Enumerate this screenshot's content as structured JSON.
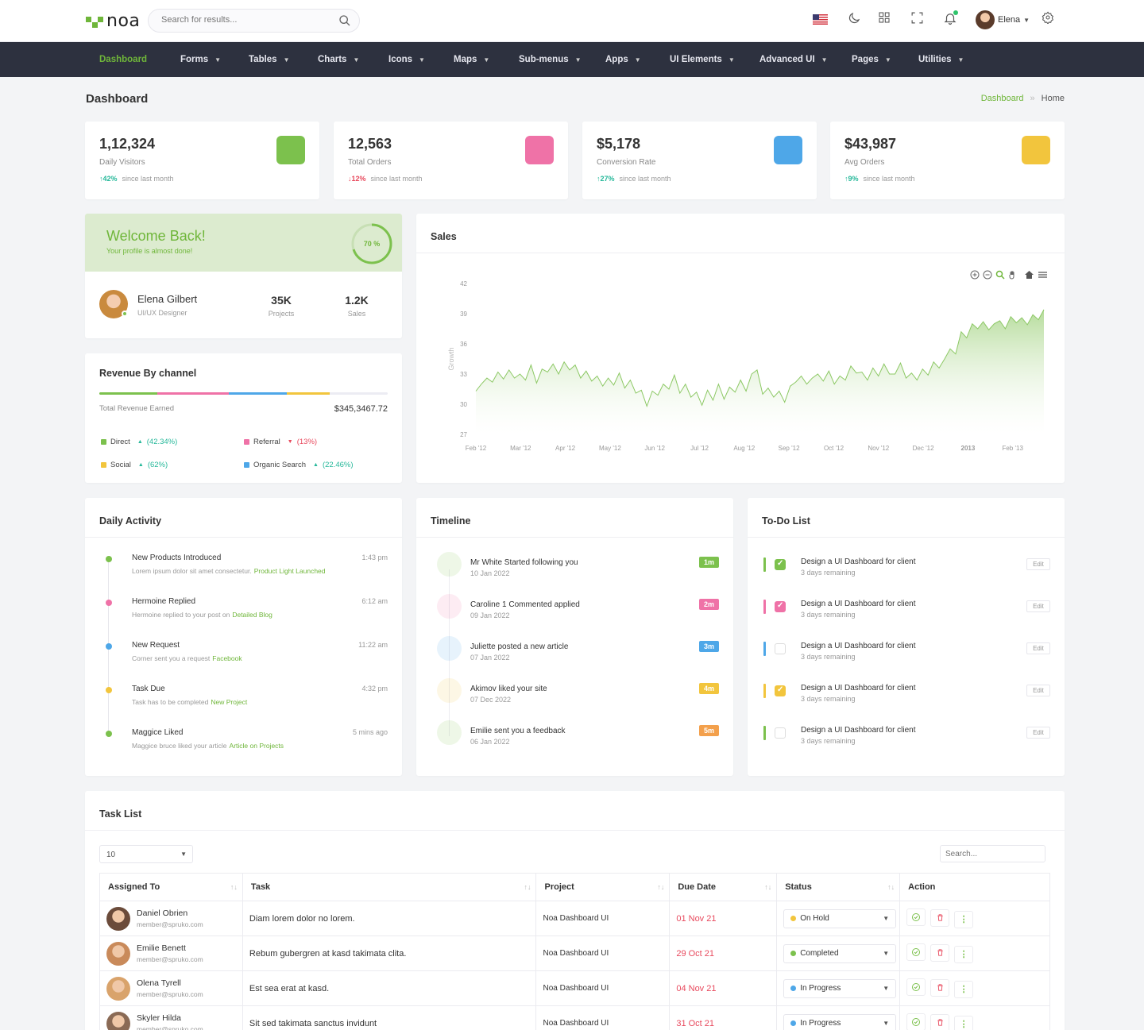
{
  "brand": {
    "name": "noa"
  },
  "header": {
    "search_placeholder": "Search for results...",
    "user_name": "Elena"
  },
  "nav": [
    {
      "label": "Dashboard",
      "icon": "home-icon",
      "active": true
    },
    {
      "label": "Forms",
      "icon": "edit-icon"
    },
    {
      "label": "Tables",
      "icon": "table-icon"
    },
    {
      "label": "Charts",
      "icon": "bar-chart-icon"
    },
    {
      "label": "Icons",
      "icon": "aperture-icon"
    },
    {
      "label": "Maps",
      "icon": "map-pin-icon"
    },
    {
      "label": "Sub-menus",
      "icon": "share-icon"
    },
    {
      "label": "Apps",
      "icon": "grid-icon"
    },
    {
      "label": "UI Elements",
      "icon": "layers-icon"
    },
    {
      "label": "Advanced UI",
      "icon": "settings-icon"
    },
    {
      "label": "Pages",
      "icon": "file-icon"
    },
    {
      "label": "Utilities",
      "icon": "stack-icon"
    }
  ],
  "page": {
    "title": "Dashboard",
    "crumb1": "Dashboard",
    "crumb2": "Home"
  },
  "stats": [
    {
      "value": "1,12,324",
      "label": "Daily Visitors",
      "change": "42%",
      "dir": "up",
      "note": "since last month",
      "color": "#7cc14d",
      "icon": "eye-icon"
    },
    {
      "value": "12,563",
      "label": "Total Orders",
      "change": "12%",
      "dir": "down",
      "note": "since last month",
      "color": "#ef72a7",
      "icon": "bag-icon"
    },
    {
      "value": "$5,178",
      "label": "Conversion Rate",
      "change": "27%",
      "dir": "up",
      "note": "since last month",
      "color": "#4ea7e8",
      "icon": "chart-icon"
    },
    {
      "value": "$43,987",
      "label": "Avg Orders",
      "change": "9%",
      "dir": "up",
      "note": "since last month",
      "color": "#f2c53d",
      "icon": "dollar-icon"
    }
  ],
  "welcome": {
    "title": "Welcome Back!",
    "subtitle": "Your profile is almost done!",
    "progress_label": "70 %",
    "progress": 0.7,
    "name": "Elena Gilbert",
    "role": "UI/UX Designer",
    "projects_value": "35K",
    "projects_label": "Projects",
    "sales_value": "1.2K",
    "sales_label": "Sales"
  },
  "revenue": {
    "title": "Revenue By channel",
    "total_label": "Total Revenue Earned",
    "total_value": "$345,3467.72",
    "segments": [
      {
        "color": "#7cc14d",
        "share": 0.2
      },
      {
        "color": "#ef72a7",
        "share": 0.25
      },
      {
        "color": "#4ea7e8",
        "share": 0.2
      },
      {
        "color": "#f2c53d",
        "share": 0.15
      },
      {
        "color": "#ececf3",
        "share": 0.2
      }
    ],
    "channels": [
      {
        "name": "Direct",
        "change": "(42.34%)",
        "dir": "up",
        "color": "#7cc14d"
      },
      {
        "name": "Referral",
        "change": "(13%)",
        "dir": "down",
        "color": "#ef72a7"
      },
      {
        "name": "Social",
        "change": "(62%)",
        "dir": "up",
        "color": "#f2c53d"
      },
      {
        "name": "Organic Search",
        "change": "(22.46%)",
        "dir": "up",
        "color": "#4ea7e8"
      }
    ]
  },
  "sales": {
    "title": "Sales"
  },
  "chart_data": {
    "type": "area",
    "title": "Sales",
    "xlabel": "",
    "ylabel": "Growth",
    "ylim": [
      27,
      42
    ],
    "yticks": [
      27,
      30,
      33,
      36,
      39,
      42
    ],
    "x_ticks": [
      "Feb '12",
      "Mar '12",
      "Apr '12",
      "May '12",
      "Jun '12",
      "Jul '12",
      "Aug '12",
      "Sep '12",
      "Oct '12",
      "Nov '12",
      "Dec '12",
      "2013",
      "Feb '13"
    ],
    "values": [
      31.3,
      32.0,
      32.6,
      32.2,
      33.2,
      32.5,
      33.4,
      32.6,
      33.0,
      32.4,
      33.9,
      32.1,
      33.5,
      33.2,
      34.0,
      33.0,
      34.2,
      33.4,
      33.9,
      32.6,
      33.3,
      32.3,
      32.8,
      31.8,
      32.6,
      31.9,
      33.1,
      31.6,
      32.4,
      31.1,
      31.4,
      29.8,
      31.3,
      30.9,
      32.0,
      31.5,
      32.9,
      31.1,
      32.0,
      30.7,
      31.2,
      29.9,
      31.4,
      30.4,
      32.0,
      30.5,
      31.7,
      31.2,
      32.4,
      31.3,
      33.0,
      33.4,
      31.0,
      31.6,
      30.7,
      31.3,
      30.2,
      31.8,
      32.2,
      32.8,
      32.0,
      32.6,
      33.0,
      32.3,
      33.3,
      32.0,
      32.8,
      32.4,
      33.8,
      33.1,
      33.2,
      32.4,
      33.6,
      32.8,
      34.0,
      33.0,
      33.0,
      34.1,
      32.6,
      33.1,
      32.4,
      33.5,
      32.9,
      34.2,
      33.6,
      34.5,
      35.5,
      35.0,
      37.2,
      36.6,
      38.0,
      37.5,
      38.2,
      37.4,
      38.0,
      38.3,
      37.5,
      38.7,
      38.1,
      38.6,
      37.9,
      38.9,
      38.4,
      39.4
    ]
  },
  "activity": {
    "title": "Daily Activity",
    "items": [
      {
        "title": "New Products Introduced",
        "time": "1:43 pm",
        "text": "Lorem ipsum dolor sit amet consectetur.",
        "link": "Product Light Launched",
        "color": "#7cc14d"
      },
      {
        "title": "Hermoine Replied",
        "time": "6:12 am",
        "text": "Hermoine replied to your post on",
        "link": "Detailed Blog",
        "color": "#ef72a7"
      },
      {
        "title": "New Request",
        "time": "11:22 am",
        "text": "Corner sent you a request",
        "link": "Facebook",
        "color": "#4ea7e8"
      },
      {
        "title": "Task Due",
        "time": "4:32 pm",
        "text": "Task has to be completed",
        "link": "New Project",
        "color": "#f2c53d"
      },
      {
        "title": "Maggice Liked",
        "time": "5 mins ago",
        "text": "Maggice bruce liked your article",
        "link": "Article on Projects",
        "color": "#7cc14d"
      }
    ]
  },
  "timeline": {
    "title": "Timeline",
    "items": [
      {
        "title": "Mr White Started following you",
        "date": "10 Jan 2022",
        "badge": "1m",
        "color": "#7cc14d",
        "icon": "user-plus-icon"
      },
      {
        "title": "Caroline 1 Commented applied",
        "date": "09 Jan 2022",
        "badge": "2m",
        "color": "#ef72a7",
        "icon": "comment-icon"
      },
      {
        "title": "Juliette posted a new article",
        "date": "07 Jan 2022",
        "badge": "3m",
        "color": "#4ea7e8",
        "icon": "clipboard-icon"
      },
      {
        "title": "Akimov liked your site",
        "date": "07 Dec 2022",
        "badge": "4m",
        "color": "#f2c53d",
        "icon": "thumbs-up-icon"
      },
      {
        "title": "Emilie sent you a feedback",
        "date": "06 Jan 2022",
        "badge": "5m",
        "color": "#7cc14d",
        "icon": "book-icon",
        "badge_color": "#f3a04c"
      }
    ]
  },
  "todo": {
    "title": "To-Do List",
    "edit_label": "Edit",
    "items": [
      {
        "title": "Design a UI Dashboard for client",
        "sub": "3 days remaining",
        "color": "#7cc14d",
        "checked": true
      },
      {
        "title": "Design a UI Dashboard for client",
        "sub": "3 days remaining",
        "color": "#ef72a7",
        "checked": true
      },
      {
        "title": "Design a UI Dashboard for client",
        "sub": "3 days remaining",
        "color": "#4ea7e8",
        "checked": false
      },
      {
        "title": "Design a UI Dashboard for client",
        "sub": "3 days remaining",
        "color": "#f2c53d",
        "checked": true
      },
      {
        "title": "Design a UI Dashboard for client",
        "sub": "3 days remaining",
        "color": "#7cc14d",
        "checked": false
      }
    ]
  },
  "tasks": {
    "title": "Task List",
    "page_size": "10",
    "search_placeholder": "Search...",
    "columns": [
      "Assigned To",
      "Task",
      "Project",
      "Due Date",
      "Status",
      "Action"
    ],
    "rows": [
      {
        "name": "Daniel Obrien",
        "email": "member@spruko.com",
        "task": "Diam lorem dolor no lorem.",
        "project": "Noa Dashboard UI",
        "due": "01 Nov 21",
        "status": "On Hold",
        "status_color": "#f2c53d"
      },
      {
        "name": "Emilie Benett",
        "email": "member@spruko.com",
        "task": "Rebum gubergren at kasd takimata clita.",
        "project": "Noa Dashboard UI",
        "due": "29 Oct 21",
        "status": "Completed",
        "status_color": "#7cc14d"
      },
      {
        "name": "Olena Tyrell",
        "email": "member@spruko.com",
        "task": "Est sea erat at kasd.",
        "project": "Noa Dashboard UI",
        "due": "04 Nov 21",
        "status": "In Progress",
        "status_color": "#4ea7e8"
      },
      {
        "name": "Skyler Hilda",
        "email": "member@spruko.com",
        "task": "Sit sed takimata sanctus invidunt",
        "project": "Noa Dashboard UI",
        "due": "31 Oct 21",
        "status": "In Progress",
        "status_color": "#4ea7e8"
      }
    ]
  }
}
